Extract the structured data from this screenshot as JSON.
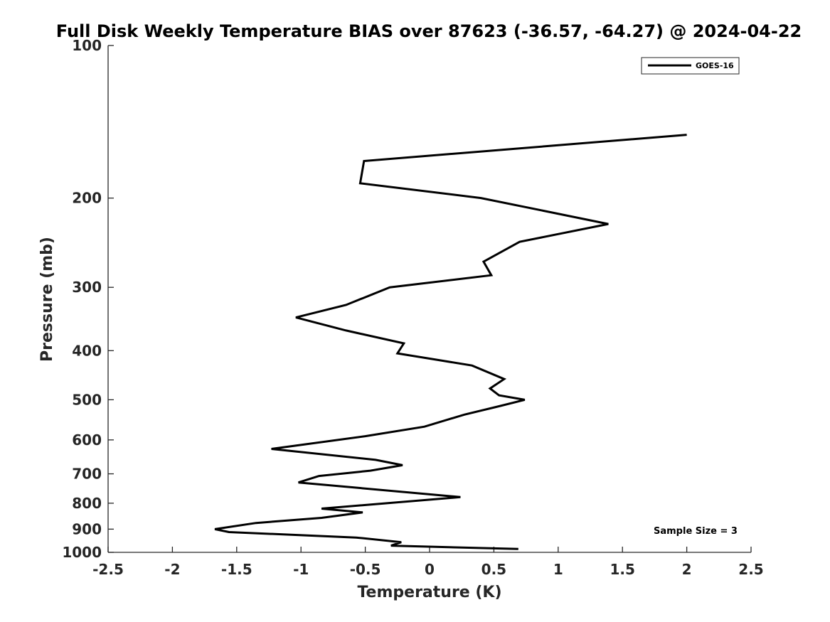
{
  "chart_data": {
    "type": "line",
    "title": "Full Disk Weekly Temperature BIAS over 87623 (-36.57, -64.27) @ 2024-04-22",
    "xlabel": "Temperature (K)",
    "ylabel": "Pressure (mb)",
    "xlim": [
      -2.5,
      2.5
    ],
    "ylim": [
      100,
      1000
    ],
    "y_scale": "log",
    "y_reversed": true,
    "x_ticks": [
      "-2.5",
      "-2",
      "-1.5",
      "-1",
      "-0.5",
      "0",
      "0.5",
      "1",
      "1.5",
      "2",
      "2.5"
    ],
    "y_ticks": [
      "100",
      "200",
      "300",
      "400",
      "500",
      "600",
      "700",
      "800",
      "900",
      "1000"
    ],
    "grid": false,
    "legend_position": "top-right",
    "annotation": "Sample Size = 3",
    "line_color": "#000000",
    "series": [
      {
        "name": "GOES-16",
        "points": [
          {
            "x": 2.0,
            "y": 150
          },
          {
            "x": -0.51,
            "y": 169
          },
          {
            "x": -0.54,
            "y": 187
          },
          {
            "x": 0.4,
            "y": 200
          },
          {
            "x": 1.39,
            "y": 225
          },
          {
            "x": 0.7,
            "y": 244
          },
          {
            "x": 0.42,
            "y": 267
          },
          {
            "x": 0.48,
            "y": 284
          },
          {
            "x": -0.31,
            "y": 300
          },
          {
            "x": -0.65,
            "y": 325
          },
          {
            "x": -1.04,
            "y": 344
          },
          {
            "x": -0.65,
            "y": 365
          },
          {
            "x": -0.2,
            "y": 387
          },
          {
            "x": -0.25,
            "y": 405
          },
          {
            "x": 0.33,
            "y": 428
          },
          {
            "x": 0.58,
            "y": 455
          },
          {
            "x": 0.47,
            "y": 475
          },
          {
            "x": 0.54,
            "y": 490
          },
          {
            "x": 0.74,
            "y": 500
          },
          {
            "x": 0.54,
            "y": 515
          },
          {
            "x": 0.27,
            "y": 535
          },
          {
            "x": -0.04,
            "y": 565
          },
          {
            "x": -0.5,
            "y": 590
          },
          {
            "x": -1.23,
            "y": 625
          },
          {
            "x": -0.42,
            "y": 657
          },
          {
            "x": -0.21,
            "y": 673
          },
          {
            "x": -0.46,
            "y": 690
          },
          {
            "x": -0.86,
            "y": 707
          },
          {
            "x": -1.02,
            "y": 728
          },
          {
            "x": 0.24,
            "y": 778
          },
          {
            "x": -0.84,
            "y": 820
          },
          {
            "x": -0.52,
            "y": 834
          },
          {
            "x": -0.84,
            "y": 855
          },
          {
            "x": -1.35,
            "y": 875
          },
          {
            "x": -1.67,
            "y": 900
          },
          {
            "x": -1.56,
            "y": 912
          },
          {
            "x": -0.57,
            "y": 935
          },
          {
            "x": -0.22,
            "y": 955
          },
          {
            "x": -0.3,
            "y": 970
          },
          {
            "x": 0.69,
            "y": 985
          }
        ]
      }
    ]
  }
}
